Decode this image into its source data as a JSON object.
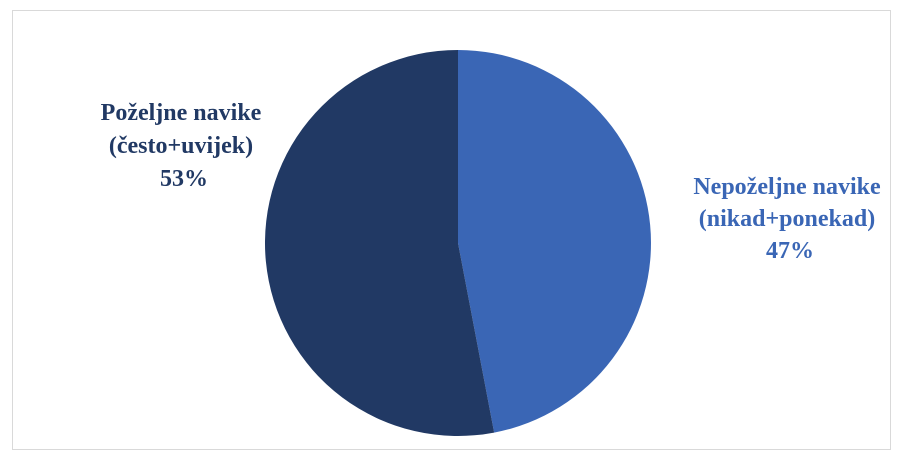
{
  "chart_data": {
    "type": "pie",
    "title": "",
    "slices": [
      {
        "label_lines": [
          "Nepoželjne navike",
          "(nikad+ponekad)"
        ],
        "percent_label": "47%",
        "value": 47,
        "color": "#3a66b5"
      },
      {
        "label_lines": [
          "Poželjne navike",
          "(često+uvijek)"
        ],
        "percent_label": "53%",
        "value": 53,
        "color": "#213964"
      }
    ],
    "start_angle_deg": 0,
    "direction": "clockwise",
    "legend": "none"
  }
}
